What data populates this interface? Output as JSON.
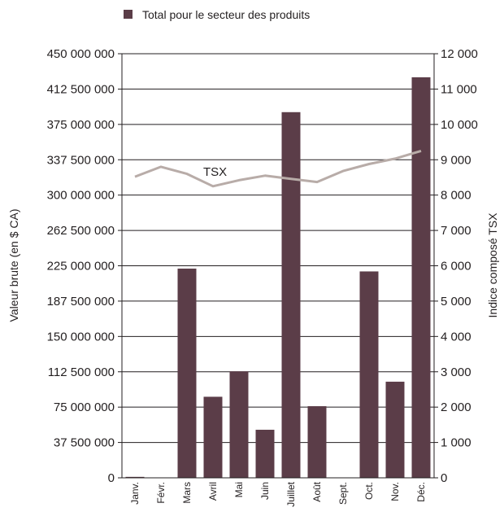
{
  "chart_data": {
    "type": "bar",
    "legend": {
      "label": "Total pour le secteur des produits",
      "position": "top-center"
    },
    "categories": [
      "Janv.",
      "Févr.",
      "Mars",
      "Avril",
      "Mai",
      "Juin",
      "Juillet",
      "Août",
      "Sept.",
      "Oct.",
      "Nov.",
      "Déc."
    ],
    "series": [
      {
        "name": "Total pour le secteur des produits",
        "axis": "left",
        "type": "bar",
        "color": "#5b3d48",
        "values": [
          1000000,
          0,
          222000000,
          86000000,
          113000000,
          51000000,
          388000000,
          76000000,
          0,
          219000000,
          102000000,
          425000000
        ]
      },
      {
        "name": "TSX",
        "axis": "right",
        "type": "line",
        "color": "#b8aca8",
        "values": [
          8520,
          8800,
          8600,
          8250,
          8420,
          8550,
          8460,
          8370,
          8680,
          8880,
          9030,
          9250
        ]
      }
    ],
    "line_label": "TSX",
    "ylabel": "Valeur brute (en $ CA)",
    "ylabel_right": "Indice composé TSX",
    "ylim": [
      0,
      450000000
    ],
    "ylim_right": [
      0,
      12000
    ],
    "yticks": [
      "0",
      "37 500 000",
      "75 000 000",
      "112 500 000",
      "150 000 000",
      "187 500 000",
      "225 000 000",
      "262 500 000",
      "300 000 000",
      "337 500 000",
      "375 000 000",
      "412 500 000",
      "450 000 000"
    ],
    "yticks_right": [
      "0",
      "1 000",
      "2 000",
      "3 000",
      "4 000",
      "5 000",
      "6 000",
      "7 000",
      "8 000",
      "9 000",
      "10 000",
      "11 000",
      "12 000"
    ],
    "grid": true
  }
}
